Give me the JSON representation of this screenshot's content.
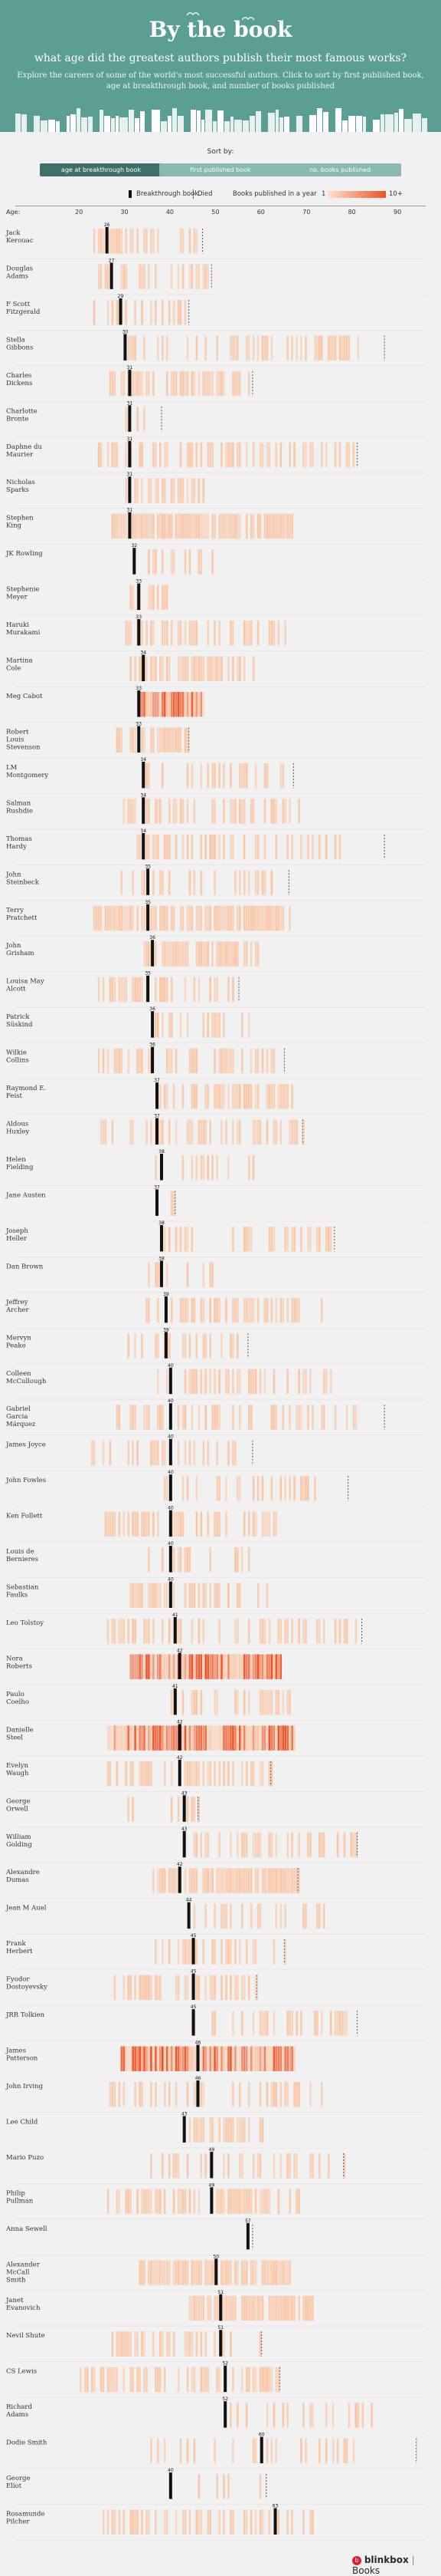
{
  "header": {
    "title": "By the book",
    "subtitle": "what age did the greatest authors publish their most famous works?",
    "description": "Explore the careers of some of the world's most successful authors. Click to sort by first published book, age at breakthrough book, and number of books published"
  },
  "sort": {
    "label": "Sort by:",
    "buttons": [
      "age at breakthrough book",
      "first published book",
      "no. books published"
    ]
  },
  "legend": {
    "breakthrough": "Breakthrough book",
    "died": "Died",
    "books": "Books published in a year",
    "scale_min": "1",
    "scale_max": "10+"
  },
  "footer": {
    "brand_left": "blinkbox",
    "brand_right": "Books"
  },
  "colors": {
    "header": "#5b9e94",
    "button_active": "#3f6f69",
    "button": "#89b9b1",
    "book": "#fbc5a3",
    "book_dense": "#f05020",
    "marker": "#111111"
  },
  "chart_data": {
    "type": "timeline",
    "xlabel": "Age:",
    "ticks": [
      20,
      30,
      40,
      50,
      60,
      70,
      80,
      90
    ],
    "xlim": [
      0,
      95
    ],
    "authors": [
      {
        "name": "Jack Kerouac",
        "breakthrough": 26,
        "start": 22,
        "end": 46,
        "died": 47,
        "density": 1.2
      },
      {
        "name": "Douglas Adams",
        "breakthrough": 27,
        "start": 24,
        "end": 48,
        "died": 49,
        "density": 1.2
      },
      {
        "name": "F Scott Fitzgerald",
        "breakthrough": 29,
        "start": 23,
        "end": 43,
        "died": 44,
        "density": 1
      },
      {
        "name": "Stella Gibbons",
        "breakthrough": 30,
        "start": 28,
        "end": 82,
        "died": 87,
        "density": 1
      },
      {
        "name": "Charles Dickens",
        "breakthrough": 31,
        "start": 25,
        "end": 57,
        "died": 58,
        "density": 1.4
      },
      {
        "name": "Charlotte Bronte",
        "breakthrough": 31,
        "start": 30,
        "end": 37,
        "died": 38,
        "density": 0.7
      },
      {
        "name": "Daphne du Maurier",
        "breakthrough": 31,
        "start": 24,
        "end": 80,
        "died": 81,
        "density": 1
      },
      {
        "name": "Nicholas Sparks",
        "breakthrough": 31,
        "start": 30,
        "end": 47,
        "died": null,
        "density": 1.3
      },
      {
        "name": "Stephen King",
        "breakthrough": 31,
        "start": 27,
        "end": 67,
        "died": null,
        "density": 2
      },
      {
        "name": "JK Rowling",
        "breakthrough": 32,
        "start": 32,
        "end": 49,
        "died": null,
        "density": 1
      },
      {
        "name": "Stephenie Meyer",
        "breakthrough": 33,
        "start": 31,
        "end": 40,
        "died": null,
        "density": 1
      },
      {
        "name": "Haruki Murakami",
        "breakthrough": 33,
        "start": 30,
        "end": 65,
        "died": null,
        "density": 1.1
      },
      {
        "name": "Martina Cole",
        "breakthrough": 34,
        "start": 31,
        "end": 58,
        "died": null,
        "density": 1.4
      },
      {
        "name": "Meg Cabot",
        "breakthrough": 33,
        "start": 33,
        "end": 47,
        "died": null,
        "density": 4
      },
      {
        "name": "Robert Louis Stevenson",
        "breakthrough": 33,
        "start": 28,
        "end": 44,
        "died": 44,
        "density": 1.3
      },
      {
        "name": "LM Montgomery",
        "breakthrough": 34,
        "start": 34,
        "end": 66,
        "died": 67,
        "density": 1.1
      },
      {
        "name": "Salman Rushdie",
        "breakthrough": 34,
        "start": 28,
        "end": 68,
        "died": null,
        "density": 0.9
      },
      {
        "name": "Thomas Hardy",
        "breakthrough": 34,
        "start": 31,
        "end": 80,
        "died": 87,
        "density": 0.8
      },
      {
        "name": "John Steinbeck",
        "breakthrough": 35,
        "start": 27,
        "end": 64,
        "died": 66,
        "density": 1
      },
      {
        "name": "Terry Pratchett",
        "breakthrough": 35,
        "start": 23,
        "end": 66,
        "died": null,
        "density": 2
      },
      {
        "name": "John Grisham",
        "breakthrough": 36,
        "start": 34,
        "end": 59,
        "died": null,
        "density": 1.8
      },
      {
        "name": "Louisa May Alcott",
        "breakthrough": 35,
        "start": 22,
        "end": 55,
        "died": 55,
        "density": 1.2
      },
      {
        "name": "Patrick Süskind",
        "breakthrough": 36,
        "start": 36,
        "end": 57,
        "died": null,
        "density": 0.6
      },
      {
        "name": "Wilkie Collins",
        "breakthrough": 36,
        "start": 24,
        "end": 65,
        "died": 65,
        "density": 1.3
      },
      {
        "name": "Raymond E. Feist",
        "breakthrough": 37,
        "start": 37,
        "end": 68,
        "died": null,
        "density": 1.5
      },
      {
        "name": "Aldous Huxley",
        "breakthrough": 37,
        "start": 22,
        "end": 69,
        "died": 69,
        "density": 1
      },
      {
        "name": "Helen Fielding",
        "breakthrough": 38,
        "start": 36,
        "end": 58,
        "died": null,
        "density": 0.8
      },
      {
        "name": "Jane Austen",
        "breakthrough": 37,
        "start": 35,
        "end": 41,
        "died": 41,
        "density": 1
      },
      {
        "name": "Joseph Heller",
        "breakthrough": 38,
        "start": 38,
        "end": 76,
        "died": 76,
        "density": 0.8
      },
      {
        "name": "Dan Brown",
        "breakthrough": 38,
        "start": 34,
        "end": 49,
        "died": null,
        "density": 0.8
      },
      {
        "name": "Jeffrey Archer",
        "breakthrough": 39,
        "start": 34,
        "end": 74,
        "died": null,
        "density": 1.1
      },
      {
        "name": "Mervyn Peake",
        "breakthrough": 39,
        "start": 28,
        "end": 57,
        "died": 57,
        "density": 0.8
      },
      {
        "name": "Colleen McCullough",
        "breakthrough": 40,
        "start": 37,
        "end": 76,
        "died": null,
        "density": 1
      },
      {
        "name": "Gabriel Garcia Márquez",
        "breakthrough": 40,
        "start": 28,
        "end": 82,
        "died": 87,
        "density": 0.8
      },
      {
        "name": "James Joyce",
        "breakthrough": 40,
        "start": 22,
        "end": 57,
        "died": 58,
        "density": 0.7
      },
      {
        "name": "John Fowles",
        "breakthrough": 40,
        "start": 37,
        "end": 72,
        "died": 79,
        "density": 0.7
      },
      {
        "name": "Ken Follett",
        "breakthrough": 40,
        "start": 25,
        "end": 64,
        "died": null,
        "density": 1.4
      },
      {
        "name": "Louis de Bernieres",
        "breakthrough": 40,
        "start": 35,
        "end": 59,
        "died": null,
        "density": 0.8
      },
      {
        "name": "Sebastian Faulks",
        "breakthrough": 40,
        "start": 31,
        "end": 62,
        "died": null,
        "density": 1
      },
      {
        "name": "Leo Tolstoy",
        "breakthrough": 41,
        "start": 24,
        "end": 82,
        "died": 82,
        "density": 0.9
      },
      {
        "name": "Nora Roberts",
        "breakthrough": 42,
        "start": 31,
        "end": 64,
        "died": null,
        "density": 5
      },
      {
        "name": "Paulo Coelho",
        "breakthrough": 41,
        "start": 40,
        "end": 67,
        "died": null,
        "density": 1.2
      },
      {
        "name": "Danielle Steel",
        "breakthrough": 42,
        "start": 26,
        "end": 67,
        "died": null,
        "density": 3
      },
      {
        "name": "Evelyn Waugh",
        "breakthrough": 42,
        "start": 25,
        "end": 62,
        "died": 62,
        "density": 1.1
      },
      {
        "name": "George Orwell",
        "breakthrough": 43,
        "start": 30,
        "end": 46,
        "died": 46,
        "density": 1
      },
      {
        "name": "William Golding",
        "breakthrough": 43,
        "start": 43,
        "end": 82,
        "died": 81,
        "density": 0.9
      },
      {
        "name": "Alexandre Dumas",
        "breakthrough": 42,
        "start": 36,
        "end": 68,
        "died": 68,
        "density": 2
      },
      {
        "name": "Jean M Auel",
        "breakthrough": 44,
        "start": 44,
        "end": 75,
        "died": null,
        "density": 0.6
      },
      {
        "name": "Frank Herbert",
        "breakthrough": 45,
        "start": 36,
        "end": 65,
        "died": 65,
        "density": 1
      },
      {
        "name": "Fyodor Dostoyevsky",
        "breakthrough": 45,
        "start": 25,
        "end": 59,
        "died": 59,
        "density": 1
      },
      {
        "name": "JRR Tolkien",
        "breakthrough": 45,
        "start": 45,
        "end": 81,
        "died": 81,
        "density": 0.8
      },
      {
        "name": "James Patterson",
        "breakthrough": 46,
        "start": 29,
        "end": 67,
        "died": null,
        "density": 3
      },
      {
        "name": "John Irving",
        "breakthrough": 46,
        "start": 26,
        "end": 73,
        "died": null,
        "density": 0.8
      },
      {
        "name": "Lee Child",
        "breakthrough": 43,
        "start": 43,
        "end": 60,
        "died": null,
        "density": 1.5
      },
      {
        "name": "Mario Puzo",
        "breakthrough": 49,
        "start": 35,
        "end": 78,
        "died": 78,
        "density": 0.8
      },
      {
        "name": "Philip Pullman",
        "breakthrough": 49,
        "start": 26,
        "end": 68,
        "died": null,
        "density": 1.2
      },
      {
        "name": "Anna Sewell",
        "breakthrough": 57,
        "start": 57,
        "end": 57,
        "died": 58,
        "density": 0.5
      },
      {
        "name": "Alexander McCall Smith",
        "breakthrough": 50,
        "start": 33,
        "end": 66,
        "died": null,
        "density": 2
      },
      {
        "name": "Janet Evanovich",
        "breakthrough": 51,
        "start": 44,
        "end": 71,
        "died": null,
        "density": 2
      },
      {
        "name": "Nevil Shute",
        "breakthrough": 51,
        "start": 27,
        "end": 60,
        "died": 60,
        "density": 0.9
      },
      {
        "name": "CS Lewis",
        "breakthrough": 52,
        "start": 20,
        "end": 64,
        "died": 64,
        "density": 1.2
      },
      {
        "name": "Richard Adams",
        "breakthrough": 52,
        "start": 52,
        "end": 85,
        "died": null,
        "density": 0.7
      },
      {
        "name": "Dodie Smith",
        "breakthrough": 60,
        "start": 35,
        "end": 80,
        "died": 94,
        "density": 0.6
      },
      {
        "name": "George Eliot",
        "breakthrough": 40,
        "start": 40,
        "end": 61,
        "died": 61,
        "density": 0.7
      },
      {
        "name": "Rosamunde Pilcher",
        "breakthrough": 63,
        "start": 25,
        "end": 72,
        "died": null,
        "density": 1
      }
    ]
  }
}
